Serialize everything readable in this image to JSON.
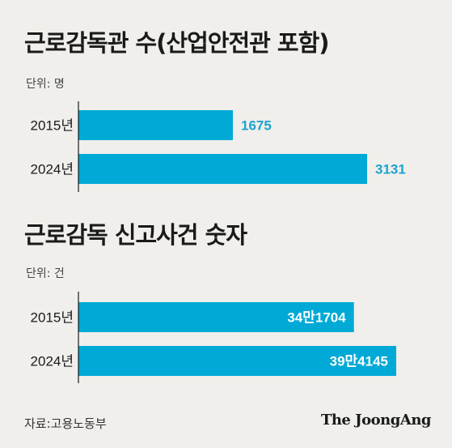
{
  "chart_data": [
    {
      "type": "bar",
      "orientation": "horizontal",
      "title": "근로감독관 수(산업안전관 포함)",
      "unit_label": "단위: 명",
      "categories": [
        "2015년",
        "2024년"
      ],
      "values": [
        1675,
        3131
      ],
      "value_labels": [
        "1675",
        "3131"
      ],
      "label_position": "outside",
      "xlim": [
        0,
        3131
      ],
      "color": "#00a9d6"
    },
    {
      "type": "bar",
      "orientation": "horizontal",
      "title": "근로감독 신고사건 숫자",
      "unit_label": "단위: 건",
      "categories": [
        "2015년",
        "2024년"
      ],
      "values": [
        341704,
        394145
      ],
      "value_labels": [
        "34만1704",
        "39만4145"
      ],
      "label_position": "inside",
      "xlim": [
        0,
        394145
      ],
      "color": "#00a9d6"
    }
  ],
  "source": "자료:고용노동부",
  "brand": "The JoongAng"
}
